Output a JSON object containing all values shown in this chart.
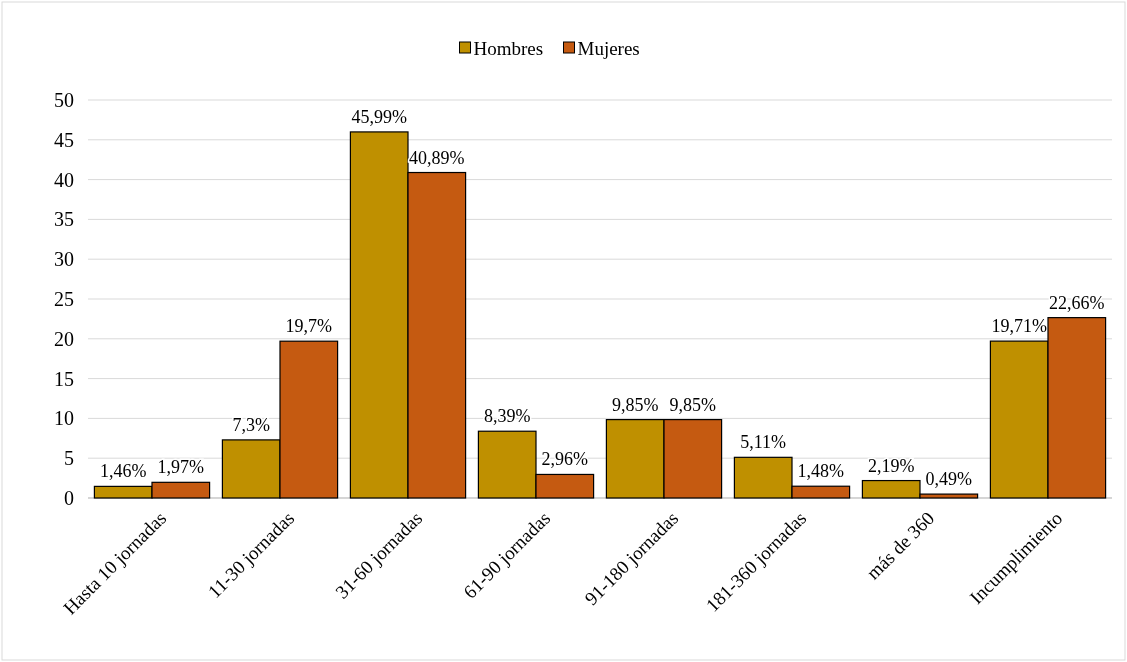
{
  "chart_data": {
    "type": "bar",
    "categories": [
      "Hasta 10 jornadas",
      "11-30 jornadas",
      "31-60 jornadas",
      "61-90 jornadas",
      "91-180 jornadas",
      "181-360 jornadas",
      "más de 360",
      "Incumplimiento"
    ],
    "series": [
      {
        "name": "Hombres",
        "color": "#bf9000",
        "values": [
          1.46,
          7.3,
          45.99,
          8.39,
          9.85,
          5.11,
          2.19,
          19.71
        ],
        "value_labels": [
          "1,46%",
          "7,3%",
          "45,99%",
          "8,39%",
          "9,85%",
          "5,11%",
          "2,19%",
          "19,71%"
        ]
      },
      {
        "name": "Mujeres",
        "color": "#c55a11",
        "values": [
          1.97,
          19.7,
          40.89,
          2.96,
          9.85,
          1.48,
          0.49,
          22.66
        ],
        "value_labels": [
          "1,97%",
          "19,7%",
          "40,89%",
          "2,96%",
          "9,85%",
          "1,48%",
          "0,49%",
          "22,66%"
        ]
      }
    ],
    "ylim": [
      0,
      50
    ],
    "yticks": [
      0,
      5,
      10,
      15,
      20,
      25,
      30,
      35,
      40,
      45,
      50
    ],
    "grid": "y",
    "legend": "top"
  }
}
